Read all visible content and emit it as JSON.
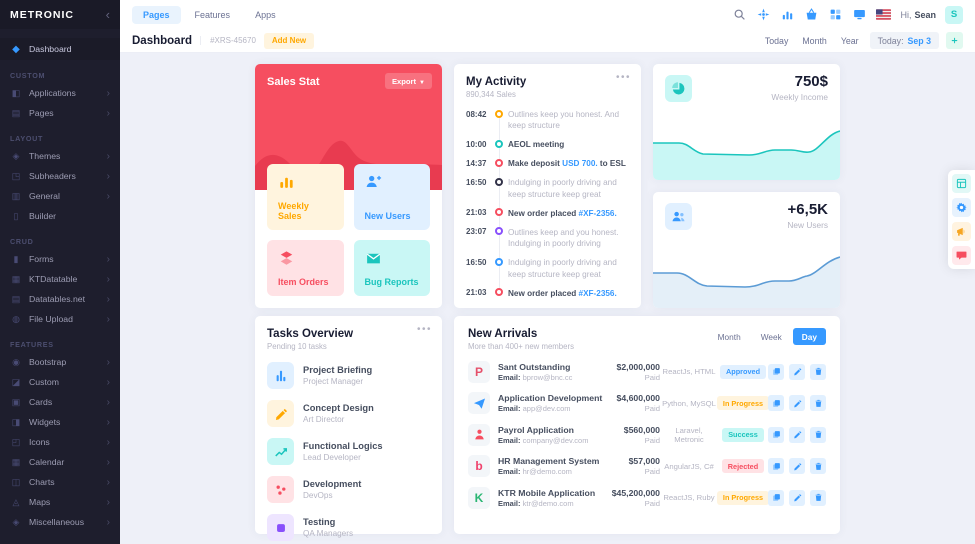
{
  "brand": {
    "name": "METRONIC"
  },
  "topnav": {
    "tabs": [
      {
        "label": "Pages",
        "active": true
      },
      {
        "label": "Features",
        "active": false
      },
      {
        "label": "Apps",
        "active": false
      }
    ],
    "icon_buttons": [
      {
        "name": "search-button",
        "icon": "search",
        "muted": true
      },
      {
        "name": "quick-actions-button",
        "icon": "compass",
        "muted": false
      },
      {
        "name": "statistics-button",
        "icon": "bar-chart",
        "muted": false
      },
      {
        "name": "cart-button",
        "icon": "basket",
        "muted": false
      },
      {
        "name": "apps-grid-button",
        "icon": "grid",
        "muted": false
      },
      {
        "name": "quick-panel-button",
        "icon": "display",
        "muted": false
      }
    ],
    "greeting": "Hi,",
    "user_name": "Sean",
    "avatar_initial": "S"
  },
  "subheader": {
    "title": "Dashboard",
    "code": "#XRS-45670",
    "add_new": "Add New",
    "range_buttons": [
      "Today",
      "Month",
      "Year"
    ],
    "date_label": "Today:",
    "date_value": "Sep 3"
  },
  "sidebar": {
    "dashboard_label": "Dashboard",
    "sections": [
      {
        "label": "Custom",
        "items": [
          {
            "label": "Applications",
            "icon": "applications",
            "arrow": true
          },
          {
            "label": "Pages",
            "icon": "pages",
            "arrow": true
          }
        ]
      },
      {
        "label": "Layout",
        "items": [
          {
            "label": "Themes",
            "icon": "themes",
            "arrow": true
          },
          {
            "label": "Subheaders",
            "icon": "subheaders",
            "arrow": true
          },
          {
            "label": "General",
            "icon": "general",
            "arrow": true
          },
          {
            "label": "Builder",
            "icon": "builder",
            "arrow": false
          }
        ]
      },
      {
        "label": "Crud",
        "items": [
          {
            "label": "Forms",
            "icon": "forms",
            "arrow": true
          },
          {
            "label": "KTDatatable",
            "icon": "datatable",
            "arrow": true
          },
          {
            "label": "Datatables.net",
            "icon": "datatables",
            "arrow": true
          },
          {
            "label": "File Upload",
            "icon": "upload",
            "arrow": true
          }
        ]
      },
      {
        "label": "Features",
        "items": [
          {
            "label": "Bootstrap",
            "icon": "bootstrap",
            "arrow": true
          },
          {
            "label": "Custom",
            "icon": "custom",
            "arrow": true
          },
          {
            "label": "Cards",
            "icon": "cards",
            "arrow": true
          },
          {
            "label": "Widgets",
            "icon": "widgets",
            "arrow": true
          },
          {
            "label": "Icons",
            "icon": "icons",
            "arrow": true
          },
          {
            "label": "Calendar",
            "icon": "calendar",
            "arrow": true
          },
          {
            "label": "Charts",
            "icon": "charts",
            "arrow": true
          },
          {
            "label": "Maps",
            "icon": "maps",
            "arrow": true
          },
          {
            "label": "Miscellaneous",
            "icon": "misc",
            "arrow": true
          }
        ]
      }
    ]
  },
  "sales_stat": {
    "title": "Sales Stat",
    "export_label": "Export",
    "tiles": [
      {
        "label": "Weekly Sales",
        "icon": "bar-chart",
        "theme": "warning"
      },
      {
        "label": "New Users",
        "icon": "user-plus",
        "theme": "primary"
      },
      {
        "label": "Item Orders",
        "icon": "layers",
        "theme": "danger"
      },
      {
        "label": "Bug Reports",
        "icon": "mail",
        "theme": "success"
      }
    ]
  },
  "activity": {
    "title": "My Activity",
    "subtitle": "890,344 Sales",
    "items": [
      {
        "time": "08:42",
        "color": "#FFA800",
        "segments": [
          {
            "text": "Outlines keep you honest. And keep structure",
            "style": "muted"
          }
        ]
      },
      {
        "time": "10:00",
        "color": "#1BC5BD",
        "segments": [
          {
            "text": "AEOL meeting",
            "style": "strong"
          }
        ]
      },
      {
        "time": "14:37",
        "color": "#F64E60",
        "segments": [
          {
            "text": "Make deposit ",
            "style": "strong"
          },
          {
            "text": "USD 700.",
            "style": "link"
          },
          {
            "text": " to ESL",
            "style": "strong"
          }
        ]
      },
      {
        "time": "16:50",
        "color": "#323248",
        "segments": [
          {
            "text": "Indulging in poorly driving and keep structure keep great",
            "style": "muted"
          }
        ]
      },
      {
        "time": "21:03",
        "color": "#F64E60",
        "segments": [
          {
            "text": "New order placed ",
            "style": "strong"
          },
          {
            "text": "#XF-2356.",
            "style": "link"
          }
        ]
      },
      {
        "time": "23:07",
        "color": "#8950FC",
        "segments": [
          {
            "text": "Outlines keep and you honest. Indulging in poorly driving",
            "style": "muted"
          }
        ]
      },
      {
        "time": "16:50",
        "color": "#3699FF",
        "segments": [
          {
            "text": "Indulging in poorly driving and keep structure keep great",
            "style": "muted"
          }
        ]
      },
      {
        "time": "21:03",
        "color": "#F64E60",
        "segments": [
          {
            "text": "New order placed ",
            "style": "strong"
          },
          {
            "text": "#XF-2356.",
            "style": "link"
          }
        ]
      }
    ]
  },
  "income_card": {
    "value": "750$",
    "label": "Weekly Income",
    "icon": "pie"
  },
  "users_card": {
    "value": "+6,5K",
    "label": "New Users",
    "icon": "users"
  },
  "tasks": {
    "title": "Tasks Overview",
    "subtitle": "Pending 10 tasks",
    "items": [
      {
        "title": "Project Briefing",
        "subtitle": "Project Manager",
        "icon": "chart-bars",
        "theme": "primary"
      },
      {
        "title": "Concept Design",
        "subtitle": "Art Director",
        "icon": "pencil",
        "theme": "warning"
      },
      {
        "title": "Functional Logics",
        "subtitle": "Lead Developer",
        "icon": "chart-line",
        "theme": "success"
      },
      {
        "title": "Development",
        "subtitle": "DevOps",
        "icon": "scatter",
        "theme": "danger"
      },
      {
        "title": "Testing",
        "subtitle": "QA Managers",
        "icon": "square",
        "theme": "purple"
      }
    ]
  },
  "arrivals": {
    "title": "New Arrivals",
    "subtitle": "More than 400+ new members",
    "tabs": [
      {
        "label": "Month",
        "active": false
      },
      {
        "label": "Week",
        "active": false
      },
      {
        "label": "Day",
        "active": true
      }
    ],
    "email_label": "Email:",
    "rows": [
      {
        "name": "Sant Outstanding",
        "email": "bprow@bnc.cc",
        "amount": "$2,000,000",
        "amount_sub": "Paid",
        "stack": "ReactJs, HTML",
        "status": "Approved",
        "status_theme": "primary",
        "logo": {
          "glyph": "P",
          "color": "#E5506A"
        }
      },
      {
        "name": "Application Development",
        "email": "app@dev.com",
        "amount": "$4,600,000",
        "amount_sub": "Paid",
        "stack": "Python, MySQL",
        "status": "In Progress",
        "status_theme": "warning",
        "logo": {
          "icon": "paper-plane",
          "color": "#3699FF"
        }
      },
      {
        "name": "Payrol Application",
        "email": "company@dev.com",
        "amount": "$560,000",
        "amount_sub": "Paid",
        "stack": "Laravel, Metronic",
        "status": "Success",
        "status_theme": "success",
        "logo": {
          "icon": "person",
          "color": "#F64E60"
        }
      },
      {
        "name": "HR Management System",
        "email": "hr@demo.com",
        "amount": "$57,000",
        "amount_sub": "Paid",
        "stack": "AngularJS, C#",
        "status": "Rejected",
        "status_theme": "danger",
        "logo": {
          "glyph": "b",
          "color": "#F0416C"
        }
      },
      {
        "name": "KTR Mobile Application",
        "email": "ktr@demo.com",
        "amount": "$45,200,000",
        "amount_sub": "Paid",
        "stack": "ReactJS, Ruby",
        "status": "In Progress",
        "status_theme": "warning",
        "logo": {
          "glyph": "K",
          "color": "#2BB673"
        }
      }
    ]
  },
  "float_panel": {
    "buttons": [
      {
        "name": "demo-layout-button",
        "icon": "layout",
        "theme": "success"
      },
      {
        "name": "settings-button",
        "icon": "gear",
        "theme": "primary"
      },
      {
        "name": "announcements-button",
        "icon": "megaphone",
        "theme": "warning"
      },
      {
        "name": "support-chat-button",
        "icon": "chat",
        "theme": "danger"
      }
    ]
  },
  "colors": {
    "primary": "#3699FF",
    "danger": "#F64E60",
    "success": "#1BC5BD",
    "warning": "#FFA800",
    "purple": "#8950FC",
    "sidebar_bg": "#1E1E2D",
    "page_bg": "#EEF0F8"
  }
}
